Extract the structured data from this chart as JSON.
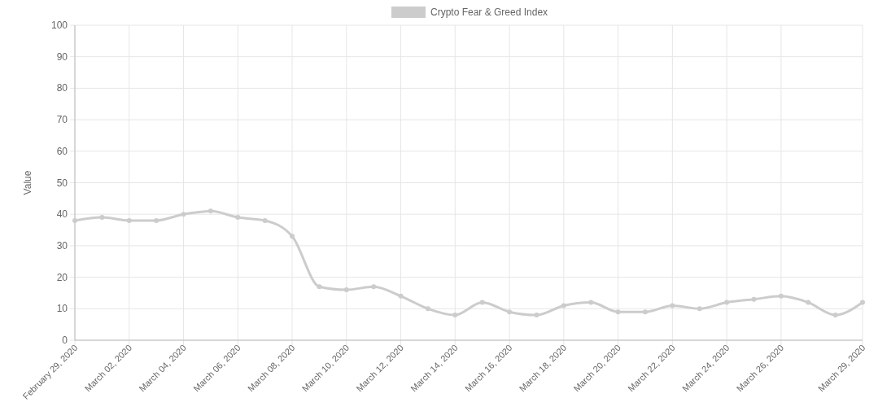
{
  "chart_data": {
    "type": "line",
    "ylabel": "Value",
    "legend": "top",
    "grid": true,
    "marker": "circle",
    "line_style": "solid",
    "x": [
      "2020-02-29",
      "2020-03-01",
      "2020-03-02",
      "2020-03-03",
      "2020-03-04",
      "2020-03-05",
      "2020-03-06",
      "2020-03-07",
      "2020-03-08",
      "2020-03-09",
      "2020-03-10",
      "2020-03-11",
      "2020-03-12",
      "2020-03-13",
      "2020-03-14",
      "2020-03-15",
      "2020-03-16",
      "2020-03-17",
      "2020-03-18",
      "2020-03-19",
      "2020-03-20",
      "2020-03-21",
      "2020-03-22",
      "2020-03-23",
      "2020-03-24",
      "2020-03-25",
      "2020-03-26",
      "2020-03-27",
      "2020-03-28",
      "2020-03-29"
    ],
    "series": [
      {
        "name": "Crypto Fear & Greed Index",
        "color": "#cccccc",
        "values": [
          38,
          39,
          38,
          38,
          40,
          41,
          39,
          38,
          33,
          17,
          16,
          17,
          14,
          10,
          8,
          12,
          9,
          8,
          11,
          12,
          9,
          9,
          11,
          10,
          12,
          13,
          14,
          12,
          8,
          12
        ]
      }
    ],
    "xlim": [
      "2020-02-29",
      "2020-03-29"
    ],
    "xticks": [
      {
        "value": "2020-02-29",
        "label": "February 29, 2020"
      },
      {
        "value": "2020-03-02",
        "label": "March 02, 2020"
      },
      {
        "value": "2020-03-04",
        "label": "March 04, 2020"
      },
      {
        "value": "2020-03-06",
        "label": "March 06, 2020"
      },
      {
        "value": "2020-03-08",
        "label": "March 08, 2020"
      },
      {
        "value": "2020-03-10",
        "label": "March 10, 2020"
      },
      {
        "value": "2020-03-12",
        "label": "March 12, 2020"
      },
      {
        "value": "2020-03-14",
        "label": "March 14, 2020"
      },
      {
        "value": "2020-03-16",
        "label": "March 16, 2020"
      },
      {
        "value": "2020-03-18",
        "label": "March 18, 2020"
      },
      {
        "value": "2020-03-20",
        "label": "March 20, 2020"
      },
      {
        "value": "2020-03-22",
        "label": "March 22, 2020"
      },
      {
        "value": "2020-03-24",
        "label": "March 24, 2020"
      },
      {
        "value": "2020-03-26",
        "label": "March 26, 2020"
      },
      {
        "value": "2020-03-29",
        "label": "March 29, 2020"
      }
    ],
    "ylim": [
      0,
      100
    ],
    "yticks": [
      0,
      10,
      20,
      30,
      40,
      50,
      60,
      70,
      80,
      90,
      100
    ]
  }
}
